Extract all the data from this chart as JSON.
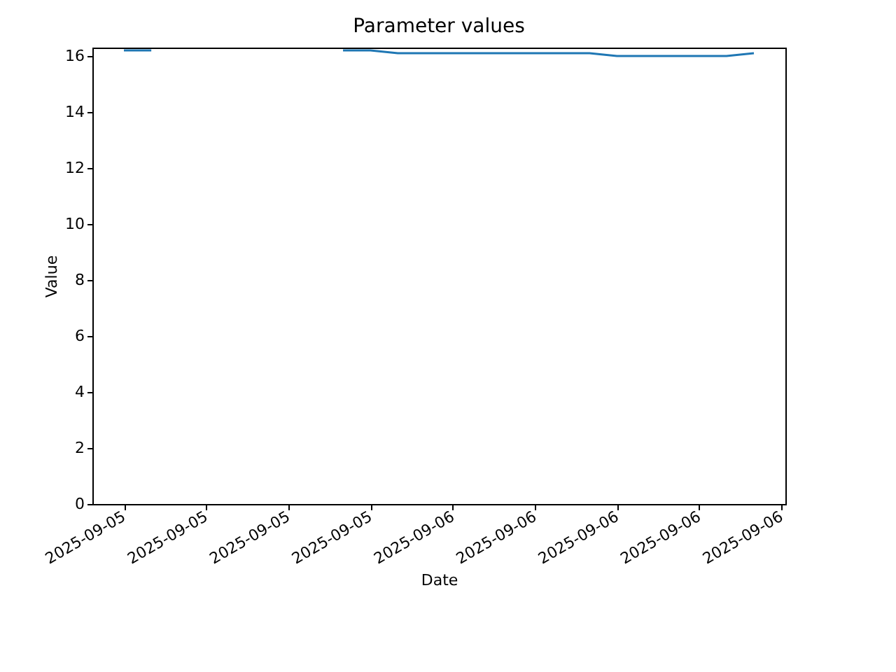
{
  "chart_data": {
    "type": "line",
    "title": "Parameter values",
    "xlabel": "Date",
    "ylabel": "Value",
    "x": [
      "2025-09-05T12:00",
      "2025-09-05T13:00",
      "2025-09-05T14:00",
      "2025-09-05T15:00",
      "2025-09-05T16:00",
      "2025-09-05T17:00",
      "2025-09-05T18:00",
      "2025-09-05T19:00",
      "2025-09-05T20:00",
      "2025-09-05T21:00",
      "2025-09-05T22:00",
      "2025-09-05T23:00",
      "2025-09-06T00:00",
      "2025-09-06T01:00",
      "2025-09-06T02:00",
      "2025-09-06T03:00",
      "2025-09-06T04:00",
      "2025-09-06T05:00",
      "2025-09-06T06:00",
      "2025-09-06T07:00",
      "2025-09-06T08:00",
      "2025-09-06T09:00",
      "2025-09-06T10:00",
      "2025-09-06T11:00"
    ],
    "series": [
      {
        "color": "#1f77b4",
        "values": [
          16.2,
          16.2,
          null,
          null,
          null,
          null,
          null,
          null,
          16.2,
          16.2,
          16.1,
          16.1,
          16.1,
          16.1,
          16.1,
          16.1,
          16.1,
          16.1,
          16.0,
          16.0,
          16.0,
          16.0,
          16.0,
          16.1
        ]
      }
    ],
    "xlim": [
      "2025-09-05T10:51",
      "2025-09-06T12:09"
    ],
    "xticks": [
      {
        "value": "2025-09-05T12:00",
        "label": "2025-09-05"
      },
      {
        "value": "2025-09-05T15:00",
        "label": "2025-09-05"
      },
      {
        "value": "2025-09-05T18:00",
        "label": "2025-09-05"
      },
      {
        "value": "2025-09-05T21:00",
        "label": "2025-09-05"
      },
      {
        "value": "2025-09-06T00:00",
        "label": "2025-09-06"
      },
      {
        "value": "2025-09-06T03:00",
        "label": "2025-09-06"
      },
      {
        "value": "2025-09-06T06:00",
        "label": "2025-09-06"
      },
      {
        "value": "2025-09-06T09:00",
        "label": "2025-09-06"
      },
      {
        "value": "2025-09-06T12:00",
        "label": "2025-09-06"
      }
    ],
    "ylim": [
      0,
      16.3
    ],
    "yticks": [
      0,
      2,
      4,
      6,
      8,
      10,
      12,
      14,
      16
    ],
    "grid": false,
    "line_style": "solid",
    "marker": "none"
  }
}
